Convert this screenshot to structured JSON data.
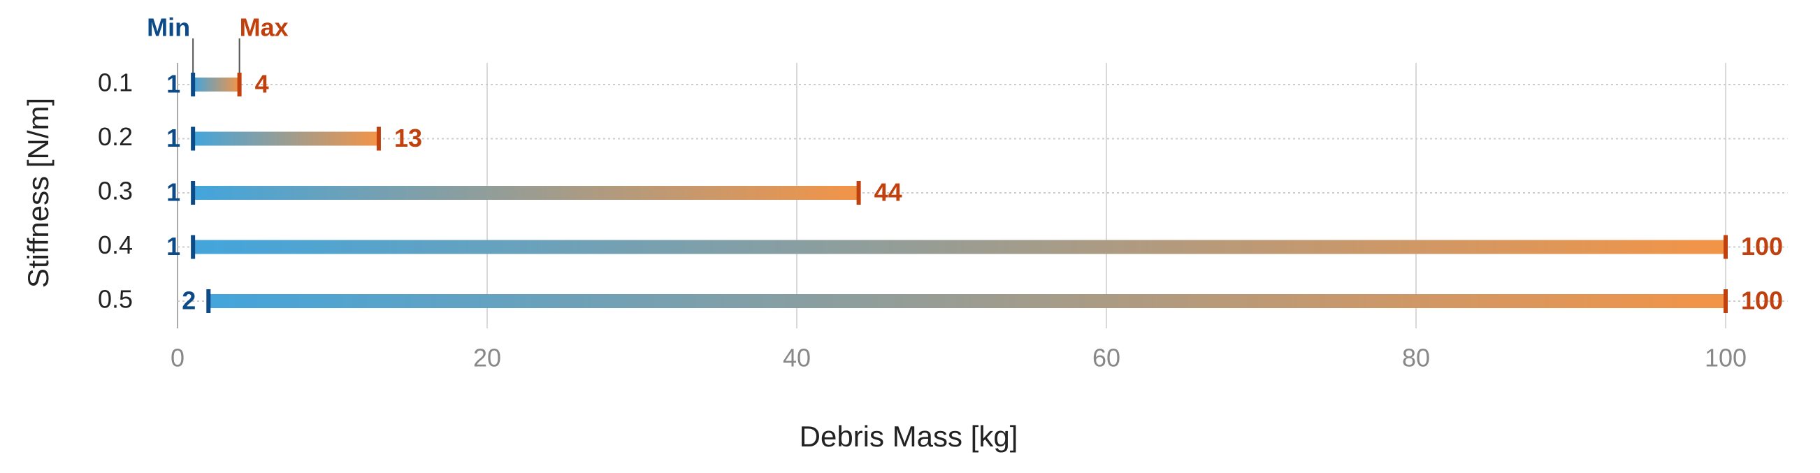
{
  "chart_data": {
    "type": "range",
    "xlabel": "Debris Mass [kg]",
    "ylabel": "Stiffness [N/m]",
    "categories": [
      "0.1",
      "0.2",
      "0.3",
      "0.4",
      "0.5"
    ],
    "series": [
      {
        "name": "Min",
        "color": "#0d4a88",
        "values": [
          1,
          1,
          1,
          1,
          2
        ]
      },
      {
        "name": "Max",
        "color": "#c0400e",
        "values": [
          4,
          13,
          44,
          100,
          100
        ]
      }
    ],
    "bar_gradient": [
      "#43a5dc",
      "#f39447"
    ],
    "xlim": [
      0,
      104
    ],
    "xticks": [
      0,
      20,
      40,
      60,
      80,
      100
    ],
    "grid": true
  }
}
